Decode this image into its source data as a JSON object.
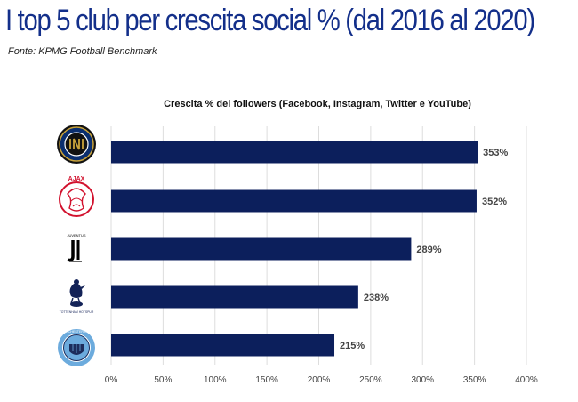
{
  "page": {
    "headline": "I top 5 club per crescita social % (dal 2016 al 2020)",
    "source": "Fonte: KPMG Football Benchmark"
  },
  "colors": {
    "bar": "#0c1f5c",
    "headline": "#132f8a",
    "grid": "#dddddd"
  },
  "clubs": [
    {
      "logo": "inter-logo-icon",
      "colors": [
        "#0a2e6e",
        "#111111",
        "#c8a23a"
      ]
    },
    {
      "logo": "ajax-logo-icon",
      "colors": [
        "#d2122e",
        "#ffffff"
      ],
      "text": "AJAX"
    },
    {
      "logo": "juventus-logo-icon",
      "colors": [
        "#000000"
      ],
      "text": "JUVENTUS"
    },
    {
      "logo": "tottenham-logo-icon",
      "colors": [
        "#132257"
      ],
      "text": "TOTTENHAM HOTSPUR"
    },
    {
      "logo": "manchester-city-logo-icon",
      "colors": [
        "#6cabdd",
        "#1c2c5b"
      ],
      "text": "MANCHESTER CITY"
    }
  ],
  "chart_data": {
    "type": "bar",
    "orientation": "horizontal",
    "title": "Crescita % dei followers (Facebook, Instagram, Twitter e YouTube)",
    "categories": [
      "",
      "",
      "",
      "",
      ""
    ],
    "values": [
      353,
      352,
      289,
      238,
      215
    ],
    "value_labels": [
      "353%",
      "352%",
      "289%",
      "238%",
      "215%"
    ],
    "xlim": [
      0,
      400
    ],
    "x_ticks": [
      0,
      50,
      100,
      150,
      200,
      250,
      300,
      350,
      400
    ],
    "x_tick_labels": [
      "0%",
      "50%",
      "100%",
      "150%",
      "200%",
      "250%",
      "300%",
      "350%",
      "400%"
    ],
    "grid": true,
    "legend": "none"
  }
}
